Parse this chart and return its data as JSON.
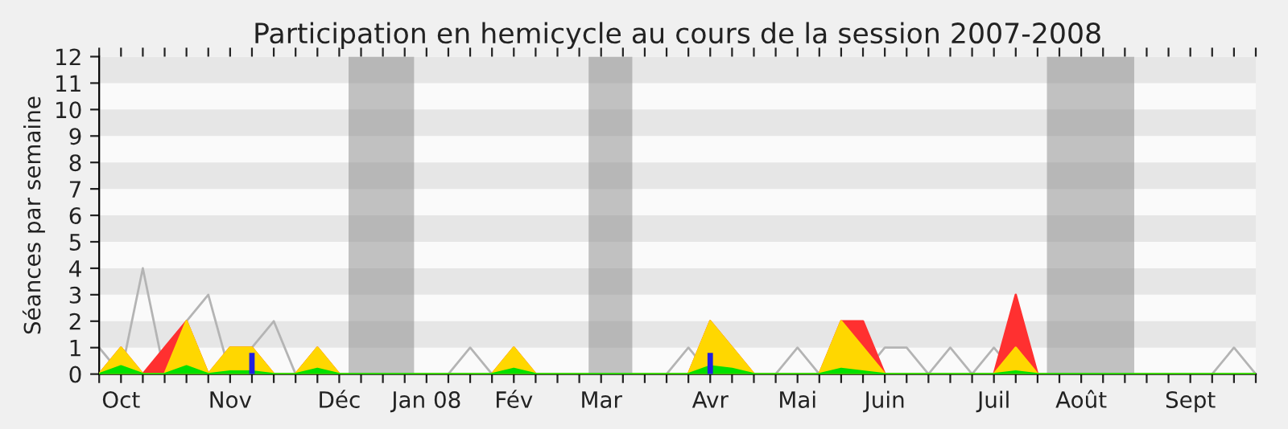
{
  "chart_data": {
    "type": "area",
    "title": "Participation en hemicycle au cours de la session 2007-2008",
    "ylabel": "Séances par semaine",
    "x": [
      "2007-09-24",
      "2007-10-01",
      "2007-10-08",
      "2007-10-15",
      "2007-10-22",
      "2007-10-29",
      "2007-11-05",
      "2007-11-12",
      "2007-11-19",
      "2007-11-26",
      "2007-12-03",
      "2007-12-10",
      "2007-12-17",
      "2007-12-24",
      "2007-12-31",
      "2008-01-07",
      "2008-01-14",
      "2008-01-21",
      "2008-01-28",
      "2008-02-04",
      "2008-02-11",
      "2008-02-18",
      "2008-02-25",
      "2008-03-03",
      "2008-03-10",
      "2008-03-17",
      "2008-03-24",
      "2008-03-31",
      "2008-04-07",
      "2008-04-14",
      "2008-04-21",
      "2008-04-28",
      "2008-05-05",
      "2008-05-12",
      "2008-05-19",
      "2008-05-26",
      "2008-06-02",
      "2008-06-09",
      "2008-06-16",
      "2008-06-23",
      "2008-06-30",
      "2008-07-07",
      "2008-07-14",
      "2008-07-21",
      "2008-07-28",
      "2008-08-04",
      "2008-08-11",
      "2008-08-18",
      "2008-08-25",
      "2008-09-01",
      "2008-09-08",
      "2008-09-15",
      "2008-09-22",
      "2008-09-29"
    ],
    "xlim": [
      "2007-09-24",
      "2008-09-29"
    ],
    "xticks": [
      {
        "value": "2007-09-24",
        "label": null
      },
      {
        "value": "2007-10-01",
        "label": "Oct"
      },
      {
        "value": "2007-10-08",
        "label": null
      },
      {
        "value": "2007-10-15",
        "label": null
      },
      {
        "value": "2007-10-22",
        "label": null
      },
      {
        "value": "2007-10-29",
        "label": null
      },
      {
        "value": "2007-11-05",
        "label": "Nov"
      },
      {
        "value": "2007-11-12",
        "label": null
      },
      {
        "value": "2007-11-19",
        "label": null
      },
      {
        "value": "2007-11-26",
        "label": null
      },
      {
        "value": "2007-12-03",
        "label": null
      },
      {
        "value": "2007-12-10",
        "label": "Déc"
      },
      {
        "value": "2007-12-17",
        "label": null
      },
      {
        "value": "2007-12-24",
        "label": null
      },
      {
        "value": "2007-12-31",
        "label": null
      },
      {
        "value": "2008-01-07",
        "label": "Jan 08"
      },
      {
        "value": "2008-01-14",
        "label": null
      },
      {
        "value": "2008-01-21",
        "label": null
      },
      {
        "value": "2008-01-28",
        "label": null
      },
      {
        "value": "2008-02-04",
        "label": "Fév"
      },
      {
        "value": "2008-02-11",
        "label": null
      },
      {
        "value": "2008-02-18",
        "label": null
      },
      {
        "value": "2008-02-25",
        "label": null
      },
      {
        "value": "2008-03-03",
        "label": "Mar"
      },
      {
        "value": "2008-03-10",
        "label": null
      },
      {
        "value": "2008-03-17",
        "label": null
      },
      {
        "value": "2008-03-24",
        "label": null
      },
      {
        "value": "2008-03-31",
        "label": null
      },
      {
        "value": "2008-04-07",
        "label": "Avr"
      },
      {
        "value": "2008-04-14",
        "label": null
      },
      {
        "value": "2008-04-21",
        "label": null
      },
      {
        "value": "2008-04-28",
        "label": null
      },
      {
        "value": "2008-05-05",
        "label": "Mai"
      },
      {
        "value": "2008-05-12",
        "label": null
      },
      {
        "value": "2008-05-19",
        "label": null
      },
      {
        "value": "2008-05-26",
        "label": null
      },
      {
        "value": "2008-06-02",
        "label": "Juin"
      },
      {
        "value": "2008-06-09",
        "label": null
      },
      {
        "value": "2008-06-16",
        "label": null
      },
      {
        "value": "2008-06-23",
        "label": null
      },
      {
        "value": "2008-06-30",
        "label": null
      },
      {
        "value": "2008-07-07",
        "label": "Juil"
      },
      {
        "value": "2008-07-14",
        "label": null
      },
      {
        "value": "2008-07-21",
        "label": null
      },
      {
        "value": "2008-07-28",
        "label": null
      },
      {
        "value": "2008-08-04",
        "label": "Août"
      },
      {
        "value": "2008-08-11",
        "label": null
      },
      {
        "value": "2008-08-18",
        "label": null
      },
      {
        "value": "2008-08-25",
        "label": null
      },
      {
        "value": "2008-09-01",
        "label": null
      },
      {
        "value": "2008-09-08",
        "label": "Sept"
      },
      {
        "value": "2008-09-15",
        "label": null
      },
      {
        "value": "2008-09-22",
        "label": null
      },
      {
        "value": "2008-09-29",
        "label": null
      }
    ],
    "series": [
      {
        "type": "line",
        "color": "#b4b4b4",
        "values": [
          1,
          0,
          4,
          0,
          2,
          3,
          0,
          1,
          2,
          0,
          0,
          0,
          0,
          0,
          0,
          0,
          0,
          1,
          0,
          0,
          0,
          0,
          0,
          0,
          0,
          0,
          0,
          1,
          0,
          0,
          0,
          0,
          1,
          0,
          0,
          0,
          1,
          1,
          0,
          1,
          0,
          1,
          0,
          0,
          0,
          0,
          0,
          0,
          0,
          0,
          0,
          0,
          1,
          0
        ]
      },
      {
        "color": "#ff3030",
        "values": [
          0,
          1,
          0,
          1,
          2,
          0,
          1,
          1,
          0,
          0,
          1,
          0,
          0,
          0,
          0,
          0,
          0,
          0,
          0,
          1,
          0,
          0,
          0,
          0,
          0,
          0,
          0,
          0,
          2,
          1,
          0,
          0,
          0,
          0,
          2,
          2,
          0,
          0,
          0,
          0,
          0,
          0,
          3,
          0,
          0,
          0,
          0,
          0,
          0,
          0,
          0,
          0,
          0,
          0
        ]
      },
      {
        "color": "#ffd700",
        "values": [
          0,
          1,
          0,
          0,
          2,
          0,
          1,
          1,
          0,
          0,
          1,
          0,
          0,
          0,
          0,
          0,
          0,
          0,
          0,
          1,
          0,
          0,
          0,
          0,
          0,
          0,
          0,
          0,
          2,
          1,
          0,
          0,
          0,
          0,
          2,
          1,
          0,
          0,
          0,
          0,
          0,
          0,
          1,
          0,
          0,
          0,
          0,
          0,
          0,
          0,
          0,
          0,
          0,
          0
        ]
      },
      {
        "color": "#00e000",
        "values": [
          0,
          0.3,
          0,
          0,
          0.3,
          0,
          0.1,
          0.1,
          0,
          0,
          0.2,
          0,
          0,
          0,
          0,
          0,
          0,
          0,
          0,
          0.2,
          0,
          0,
          0,
          0,
          0,
          0,
          0,
          0,
          0.3,
          0.2,
          0,
          0,
          0,
          0,
          0.2,
          0.1,
          0,
          0,
          0,
          0,
          0,
          0,
          0.1,
          0,
          0,
          0,
          0,
          0,
          0,
          0,
          0,
          0,
          0,
          0
        ]
      },
      {
        "type": "bar",
        "color": "#2020e0",
        "values": [
          null,
          null,
          null,
          null,
          null,
          null,
          null,
          0.8,
          null,
          null,
          null,
          null,
          null,
          null,
          null,
          null,
          null,
          null,
          null,
          null,
          null,
          null,
          null,
          null,
          null,
          null,
          null,
          null,
          0.8,
          null,
          null,
          null,
          null,
          null,
          null,
          null,
          null,
          null,
          null,
          null,
          null,
          null,
          null,
          null,
          null,
          null,
          null,
          null,
          null,
          null,
          null,
          null,
          null,
          null
        ]
      }
    ],
    "ylim": [
      0,
      12
    ],
    "yticks": [
      0,
      1,
      2,
      3,
      4,
      5,
      6,
      7,
      8,
      9,
      10,
      11,
      12
    ],
    "bands": [
      {
        "axis": "y",
        "from": 1,
        "to": 2,
        "color": "#e6e6e6"
      },
      {
        "axis": "y",
        "from": 3,
        "to": 4,
        "color": "#e6e6e6"
      },
      {
        "axis": "y",
        "from": 5,
        "to": 6,
        "color": "#e6e6e6"
      },
      {
        "axis": "y",
        "from": 7,
        "to": 8,
        "color": "#e6e6e6"
      },
      {
        "axis": "y",
        "from": 9,
        "to": 10,
        "color": "#e6e6e6"
      },
      {
        "axis": "y",
        "from": 11,
        "to": 12,
        "color": "#e6e6e6"
      },
      {
        "axis": "x",
        "from": "2007-12-13",
        "to": "2008-01-03",
        "color": "#888888"
      },
      {
        "axis": "x",
        "from": "2008-02-28",
        "to": "2008-03-13",
        "color": "#888888"
      },
      {
        "axis": "x",
        "from": "2008-07-24",
        "to": "2008-08-21",
        "color": "#888888"
      }
    ],
    "grid": false,
    "legend": false
  }
}
